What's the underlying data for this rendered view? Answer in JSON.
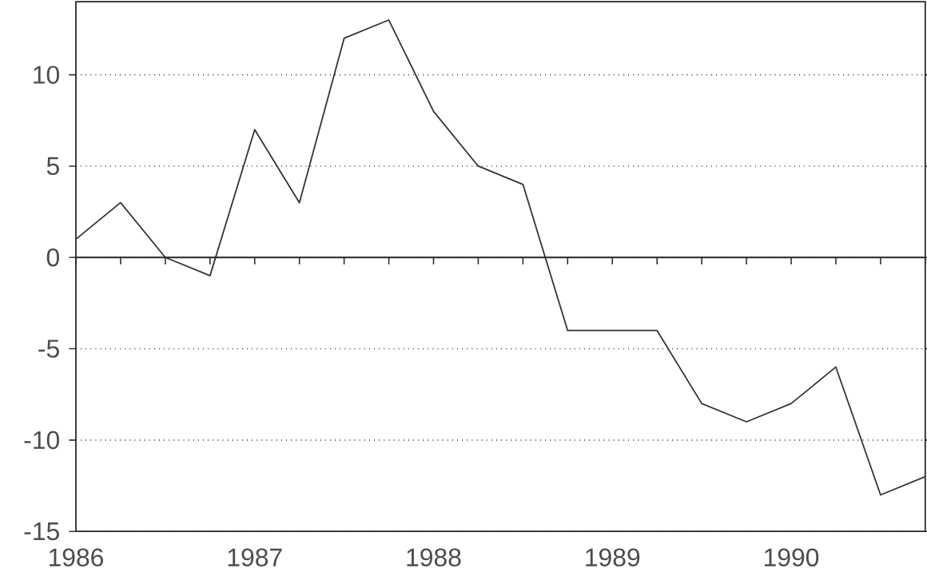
{
  "chart_data": {
    "type": "line",
    "x": [
      1986,
      1986.25,
      1986.5,
      1986.75,
      1987,
      1987.25,
      1987.5,
      1987.75,
      1988,
      1988.25,
      1988.5,
      1988.75,
      1989,
      1989.25,
      1989.5,
      1989.75,
      1990,
      1990.25,
      1990.5,
      1990.75
    ],
    "series": [
      {
        "color": "#333333",
        "values": [
          1,
          3,
          0,
          -1,
          7,
          3,
          12,
          13,
          8,
          5,
          4,
          -4,
          -4,
          -4,
          -8,
          -9,
          -8,
          -6,
          -13,
          -12
        ]
      }
    ],
    "xlim": [
      1986,
      1990.75
    ],
    "xticks": [
      1986,
      {
        "value": 1986.25,
        "label": null
      },
      {
        "value": 1986.5,
        "label": null
      },
      {
        "value": 1986.75,
        "label": null
      },
      1987,
      {
        "value": 1987.25,
        "label": null
      },
      {
        "value": 1987.5,
        "label": null
      },
      {
        "value": 1987.75,
        "label": null
      },
      1988,
      {
        "value": 1988.25,
        "label": null
      },
      {
        "value": 1988.5,
        "label": null
      },
      {
        "value": 1988.75,
        "label": null
      },
      1989,
      {
        "value": 1989.25,
        "label": null
      },
      {
        "value": 1989.5,
        "label": null
      },
      {
        "value": 1989.75,
        "label": null
      },
      1990,
      {
        "value": 1990.25,
        "label": null
      },
      {
        "value": 1990.5,
        "label": null
      },
      {
        "value": 1990.75,
        "label": null
      }
    ],
    "ylim": [
      -15,
      14
    ],
    "yticks": [
      -15,
      -10,
      -5,
      0,
      5,
      10
    ],
    "grid": "y",
    "ref_lines": [
      {
        "axis": "y",
        "value": 0,
        "line_style": "solid"
      }
    ]
  }
}
